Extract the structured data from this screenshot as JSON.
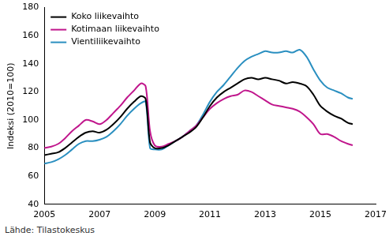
{
  "chart_data": {
    "type": "line",
    "y_label": "Indeksi (2010=100)",
    "caption": "Lähde: Tilastokeskus",
    "x": [
      2005,
      2005.25,
      2005.5,
      2005.75,
      2006,
      2006.25,
      2006.5,
      2006.75,
      2007,
      2007.25,
      2007.5,
      2007.75,
      2008,
      2008.25,
      2008.5,
      2008.67,
      2008.83,
      2009,
      2009.25,
      2009.5,
      2009.75,
      2010,
      2010.25,
      2010.5,
      2010.75,
      2011,
      2011.25,
      2011.5,
      2011.75,
      2012,
      2012.25,
      2012.5,
      2012.75,
      2013,
      2013.25,
      2013.5,
      2013.75,
      2014,
      2014.25,
      2014.5,
      2014.75,
      2015,
      2015.25,
      2015.5,
      2015.75,
      2016,
      2016.17
    ],
    "series": [
      {
        "name": "Koko liikevaihto",
        "color": "#000000",
        "values": [
          75,
          76,
          77,
          80,
          84,
          88,
          91,
          92,
          91,
          93,
          97,
          102,
          108,
          113,
          117,
          115,
          84,
          80,
          80,
          82,
          85,
          88,
          91,
          95,
          102,
          110,
          116,
          120,
          123,
          126,
          129,
          130,
          129,
          130,
          129,
          128,
          126,
          127,
          126,
          124,
          118,
          110,
          106,
          103,
          101,
          98,
          97
        ]
      },
      {
        "name": "Kotimaan liikevaihto",
        "color": "#c0168c",
        "values": [
          80,
          81,
          83,
          87,
          92,
          96,
          100,
          99,
          97,
          100,
          105,
          110,
          116,
          121,
          126,
          124,
          92,
          82,
          81,
          83,
          85,
          88,
          92,
          96,
          102,
          108,
          112,
          115,
          117,
          118,
          121,
          120,
          117,
          114,
          111,
          110,
          109,
          108,
          106,
          102,
          97,
          90,
          90,
          88,
          85,
          83,
          82
        ]
      },
      {
        "name": "Vientiliikevaihto",
        "color": "#2a8fc0",
        "values": [
          69,
          70,
          72,
          75,
          79,
          83,
          85,
          85,
          86,
          88,
          92,
          97,
          103,
          108,
          112,
          113,
          80,
          79,
          79,
          82,
          85,
          88,
          92,
          96,
          104,
          113,
          120,
          125,
          131,
          137,
          142,
          145,
          147,
          149,
          148,
          148,
          149,
          148,
          150,
          145,
          136,
          128,
          123,
          121,
          119,
          116,
          115
        ]
      }
    ],
    "xlim": [
      2005,
      2017
    ],
    "xticks": [
      2005,
      2007,
      2009,
      2011,
      2013,
      2015,
      2017
    ],
    "ylim": [
      40,
      180
    ],
    "yticks": [
      40,
      60,
      80,
      100,
      120,
      140,
      160,
      180
    ],
    "grid": false,
    "legend": "upper left",
    "marker": "none",
    "line_style": "solid"
  }
}
